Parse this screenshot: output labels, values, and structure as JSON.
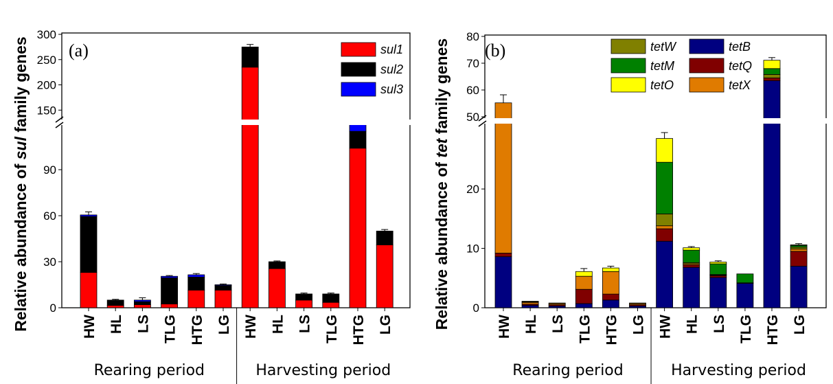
{
  "chart_data": [
    {
      "panel_label": "(a)",
      "type": "bar",
      "stacked": true,
      "ylabel_prefix": "Relative abundance of ",
      "ylabel_gene": "sul",
      "ylabel_suffix": " family genes",
      "axis_break": {
        "lower_max": 120,
        "upper_min": 130
      },
      "ylim_lower": [
        0,
        120
      ],
      "ylim_upper": [
        130,
        300
      ],
      "yticks_lower": [
        "0",
        "30",
        "60",
        "90"
      ],
      "yticks_upper": [
        "150",
        "200",
        "250",
        "300"
      ],
      "categories": [
        "HW",
        "HL",
        "LS",
        "TLG",
        "HTG",
        "LG",
        "HW",
        "HL",
        "LS",
        "TLG",
        "HTG",
        "LG"
      ],
      "groups": [
        {
          "label": "Rearing period",
          "count": 6
        },
        {
          "label": "Harvesting period",
          "count": 6
        }
      ],
      "legend": [
        "sul1",
        "sul2",
        "sul3"
      ],
      "series": [
        {
          "name": "sul1",
          "color": "#ff0000",
          "values": [
            23,
            1.5,
            2,
            2.5,
            11.5,
            11.5,
            235,
            25.5,
            5,
            3.5,
            104,
            41
          ]
        },
        {
          "name": "sul2",
          "color": "#000000",
          "values": [
            36.5,
            3.5,
            2,
            17,
            8.5,
            3,
            40,
            4.5,
            4,
            5.5,
            11,
            9
          ]
        },
        {
          "name": "sul3",
          "color": "#0000ff",
          "values": [
            1,
            0,
            1,
            1,
            1.5,
            0.5,
            0,
            0,
            0,
            0,
            5,
            0
          ]
        }
      ],
      "error_bars": [
        2,
        0.5,
        1.5,
        0.5,
        0.8,
        0.5,
        5,
        0.5,
        0.6,
        0.6,
        0,
        1
      ]
    },
    {
      "panel_label": "(b)",
      "type": "bar",
      "stacked": true,
      "ylabel_prefix": "Relative abundance of ",
      "ylabel_gene": "tet",
      "ylabel_suffix": " family genes",
      "axis_break": {
        "lower_max": 31,
        "upper_min": 50
      },
      "ylim_lower": [
        0,
        31
      ],
      "ylim_upper": [
        50,
        80
      ],
      "yticks_lower": [
        "0",
        "10",
        "20"
      ],
      "yticks_upper": [
        "50",
        "60",
        "70",
        "80"
      ],
      "categories": [
        "HW",
        "HL",
        "LS",
        "TLG",
        "HTG",
        "LG",
        "HW",
        "HL",
        "LS",
        "TLG",
        "HTG",
        "LG"
      ],
      "groups": [
        {
          "label": "Rearing period",
          "count": 6
        },
        {
          "label": "Harvesting period",
          "count": 6
        }
      ],
      "legend": [
        "tetW",
        "tetB",
        "tetM",
        "tetQ",
        "tetO",
        "tetX"
      ],
      "series": [
        {
          "name": "tetB",
          "color": "#000080",
          "values": [
            8.6,
            0.4,
            0.3,
            0.7,
            1.3,
            0.3,
            11.2,
            6.8,
            5.1,
            4.1,
            63.5,
            7
          ]
        },
        {
          "name": "tetQ",
          "color": "#800000",
          "values": [
            0.6,
            0.2,
            0.2,
            2.4,
            1,
            0.2,
            2.1,
            0.4,
            0.3,
            0,
            1,
            2.5
          ]
        },
        {
          "name": "tetX",
          "color": "#e07b00",
          "values": [
            46,
            0.3,
            0.2,
            2.2,
            3.8,
            0.2,
            0.5,
            0.2,
            0.1,
            0,
            0,
            0.4
          ]
        },
        {
          "name": "tetW",
          "color": "#808000",
          "values": [
            0,
            0.1,
            0,
            0,
            0,
            0,
            2,
            0.2,
            0.1,
            0.1,
            1.3,
            0.3
          ]
        },
        {
          "name": "tetM",
          "color": "#008000",
          "values": [
            0,
            0,
            0,
            0,
            0,
            0,
            8.7,
            2.1,
            1.8,
            1.5,
            2.2,
            0.3
          ]
        },
        {
          "name": "tetO",
          "color": "#ffff00",
          "values": [
            0,
            0.1,
            0.1,
            0.8,
            0.6,
            0.1,
            4,
            0.4,
            0.3,
            0,
            3.1,
            0.1
          ]
        }
      ],
      "error_bars": [
        3,
        0,
        0,
        0.5,
        0.3,
        0,
        1,
        0.2,
        0.2,
        0,
        1,
        0.2
      ]
    }
  ]
}
